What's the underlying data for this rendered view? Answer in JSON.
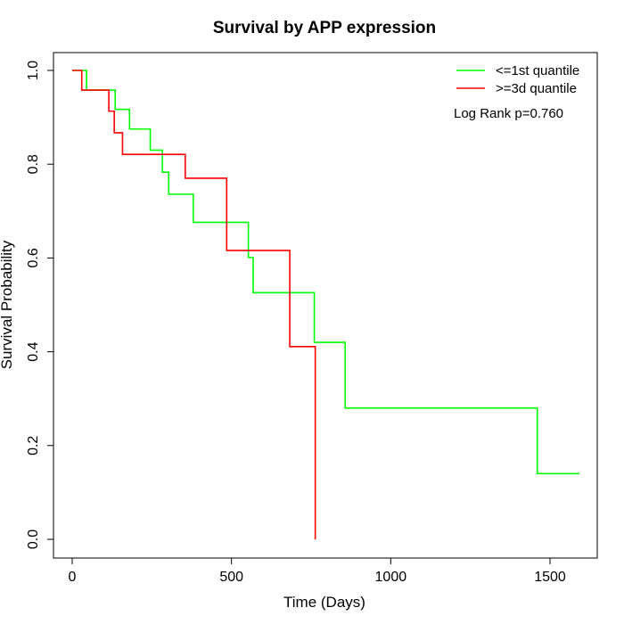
{
  "chart_data": {
    "type": "line",
    "title": "Survival by APP expression",
    "xlabel": "Time (Days)",
    "ylabel": "Survival Probability",
    "xlim": [
      0,
      1650
    ],
    "ylim": [
      0,
      1.05
    ],
    "x_ticks": [
      0,
      500,
      1000,
      1500
    ],
    "x_tick_labels": [
      "0",
      "500",
      "1000",
      "1500"
    ],
    "y_ticks": [
      0.0,
      0.2,
      0.4,
      0.6,
      0.8,
      1.0
    ],
    "y_tick_labels": [
      "0.0",
      "0.2",
      "0.4",
      "0.6",
      "0.8",
      "1.0"
    ],
    "grid": false,
    "legend_position": "top-right",
    "annotation": "Log Rank p=0.760",
    "series": [
      {
        "name": "<=1st quantile",
        "color": "#00ff00",
        "step": true,
        "x": [
          0,
          45,
          135,
          180,
          245,
          283,
          303,
          380,
          553,
          568,
          760,
          857,
          1460,
          1592
        ],
        "y": [
          1.0,
          0.958,
          0.917,
          0.875,
          0.83,
          0.783,
          0.736,
          0.676,
          0.601,
          0.526,
          0.42,
          0.28,
          0.14,
          0.14
        ]
      },
      {
        "name": ">=3d quantile",
        "color": "#ff0000",
        "step": true,
        "x": [
          0,
          30,
          115,
          132,
          158,
          355,
          485,
          683,
          763,
          763
        ],
        "y": [
          1.0,
          0.958,
          0.913,
          0.867,
          0.821,
          0.77,
          0.616,
          0.411,
          0.0,
          0.0
        ]
      }
    ]
  }
}
